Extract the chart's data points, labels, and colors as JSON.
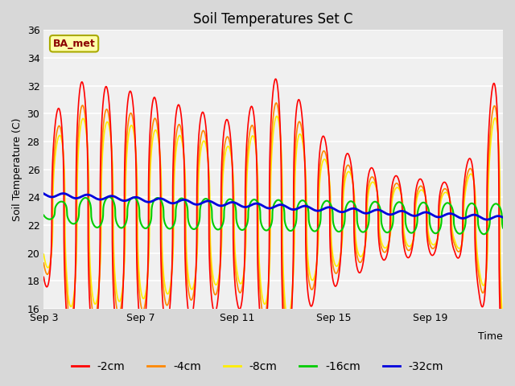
{
  "title": "Soil Temperatures Set C",
  "xlabel": "Time",
  "ylabel": "Soil Temperature (C)",
  "ylim": [
    16,
    36
  ],
  "yticks": [
    16,
    18,
    20,
    22,
    24,
    26,
    28,
    30,
    32,
    34,
    36
  ],
  "xtick_labels": [
    "Sep 3",
    "Sep 7",
    "Sep 11",
    "Sep 15",
    "Sep 19"
  ],
  "xtick_positions": [
    0,
    4,
    8,
    12,
    16
  ],
  "line_colors": [
    "#ff0000",
    "#ff8800",
    "#ffee00",
    "#00cc00",
    "#0000dd"
  ],
  "line_labels": [
    "-2cm",
    "-4cm",
    "-8cm",
    "-16cm",
    "-32cm"
  ],
  "line_widths": [
    1.2,
    1.2,
    1.2,
    1.5,
    2.0
  ],
  "fig_bg_color": "#d8d8d8",
  "plot_bg_color": "#f0f0f0",
  "grid_color": "#ffffff",
  "annotation_text": "BA_met",
  "annotation_bg": "#ffffaa",
  "annotation_border": "#aaaa00",
  "title_fontsize": 12,
  "axis_fontsize": 9,
  "tick_fontsize": 9,
  "legend_fontsize": 10,
  "n_days": 19,
  "points_per_day": 480
}
